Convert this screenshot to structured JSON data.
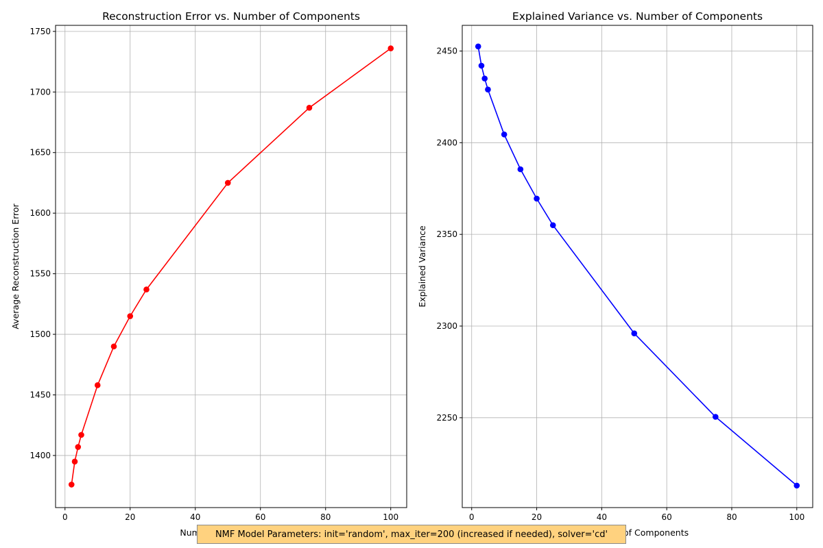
{
  "chart_data": [
    {
      "type": "line",
      "title": "Reconstruction Error vs. Number of Components",
      "xlabel": "Number of Components",
      "ylabel": "Average Reconstruction Error",
      "xlim": [
        -2.9,
        104.9
      ],
      "ylim": [
        1357,
        1755
      ],
      "xticks": [
        0,
        20,
        40,
        60,
        80,
        100
      ],
      "yticks": [
        1400,
        1450,
        1500,
        1550,
        1600,
        1650,
        1700,
        1750
      ],
      "grid": true,
      "color": "#ff0000",
      "marker": "circle",
      "x": [
        2,
        3,
        4,
        5,
        10,
        15,
        20,
        25,
        50,
        75,
        100
      ],
      "y": [
        1376,
        1395,
        1407,
        1417,
        1458,
        1490,
        1515,
        1537,
        1625,
        1687,
        1736
      ]
    },
    {
      "type": "line",
      "title": "Explained Variance vs. Number of Components",
      "xlabel": "Number of Components",
      "ylabel": "Explained Variance",
      "xlim": [
        -2.9,
        104.9
      ],
      "ylim": [
        2201,
        2464
      ],
      "xticks": [
        0,
        20,
        40,
        60,
        80,
        100
      ],
      "yticks": [
        2250,
        2300,
        2350,
        2400,
        2450
      ],
      "grid": true,
      "color": "#0000ff",
      "marker": "circle",
      "x": [
        2,
        3,
        4,
        5,
        10,
        15,
        20,
        25,
        50,
        75,
        100
      ],
      "y": [
        2452.5,
        2442,
        2435,
        2429,
        2404.5,
        2385.5,
        2369.5,
        2355,
        2296,
        2250.5,
        2213
      ]
    }
  ],
  "note": "NMF Model Parameters: init='random', max_iter=200 (increased if needed), solver='cd'"
}
